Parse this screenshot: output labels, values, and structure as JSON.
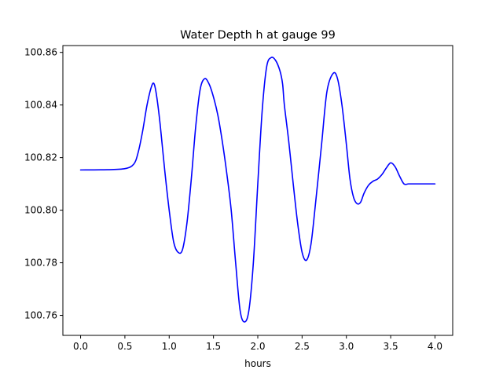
{
  "chart_data": {
    "type": "line",
    "title": "Water Depth h at gauge 99",
    "xlabel": "hours",
    "ylabel": "",
    "xlim": [
      -0.2,
      4.2
    ],
    "ylim": [
      100.7524,
      100.8626
    ],
    "x_ticks": [
      {
        "value": 0.0,
        "label": "0.0"
      },
      {
        "value": 0.5,
        "label": "0.5"
      },
      {
        "value": 1.0,
        "label": "1.0"
      },
      {
        "value": 1.5,
        "label": "1.5"
      },
      {
        "value": 2.0,
        "label": "2.0"
      },
      {
        "value": 2.5,
        "label": "2.5"
      },
      {
        "value": 3.0,
        "label": "3.0"
      },
      {
        "value": 3.5,
        "label": "3.5"
      },
      {
        "value": 4.0,
        "label": "4.0"
      }
    ],
    "y_ticks": [
      {
        "value": 100.76,
        "label": "100.76"
      },
      {
        "value": 100.78,
        "label": "100.78"
      },
      {
        "value": 100.8,
        "label": "100.80"
      },
      {
        "value": 100.82,
        "label": "100.82"
      },
      {
        "value": 100.84,
        "label": "100.84"
      },
      {
        "value": 100.86,
        "label": "100.86"
      }
    ],
    "grid": false,
    "legend": "none",
    "series": [
      {
        "color": "#0000ff",
        "x": [
          0.0,
          0.3,
          0.5,
          0.6,
          0.65,
          0.7,
          0.75,
          0.8,
          0.83,
          0.86,
          0.9,
          0.95,
          1.0,
          1.05,
          1.1,
          1.15,
          1.2,
          1.25,
          1.3,
          1.35,
          1.4,
          1.45,
          1.5,
          1.55,
          1.6,
          1.65,
          1.7,
          1.75,
          1.8,
          1.85,
          1.9,
          1.95,
          2.0,
          2.05,
          2.1,
          2.15,
          2.2,
          2.25,
          2.28,
          2.3,
          2.35,
          2.4,
          2.45,
          2.5,
          2.55,
          2.6,
          2.65,
          2.72,
          2.78,
          2.85,
          2.9,
          2.95,
          3.0,
          3.04,
          3.08,
          3.12,
          3.16,
          3.2,
          3.25,
          3.3,
          3.35,
          3.4,
          3.45,
          3.5,
          3.55,
          3.6,
          3.65,
          3.7,
          3.75,
          3.8,
          3.85,
          3.9,
          3.95,
          4.0
        ],
        "y": [
          100.8153,
          100.8154,
          100.8158,
          100.8175,
          100.822,
          100.83,
          100.84,
          100.847,
          100.848,
          100.843,
          100.832,
          100.815,
          100.8,
          100.788,
          100.784,
          100.785,
          100.795,
          100.812,
          100.832,
          100.846,
          100.85,
          100.848,
          100.843,
          100.836,
          100.826,
          100.814,
          100.8,
          100.78,
          100.762,
          100.7575,
          100.762,
          100.78,
          100.81,
          100.838,
          100.8545,
          100.858,
          100.857,
          100.853,
          100.848,
          100.84,
          100.826,
          100.81,
          100.795,
          100.784,
          100.781,
          100.787,
          100.802,
          100.825,
          100.845,
          100.852,
          100.85,
          100.84,
          100.825,
          100.812,
          100.805,
          100.8025,
          100.803,
          100.8065,
          100.8095,
          100.811,
          100.8118,
          100.8135,
          100.816,
          100.818,
          100.8165,
          100.813,
          100.81,
          100.81,
          100.81,
          100.81,
          100.81,
          100.81,
          100.81,
          100.81
        ]
      }
    ]
  }
}
